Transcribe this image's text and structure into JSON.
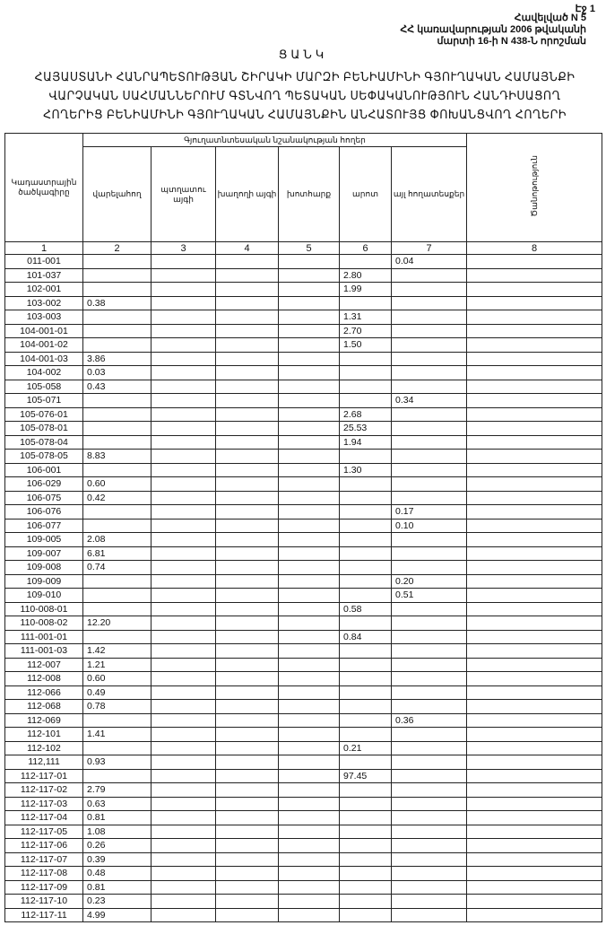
{
  "page_label": "Էջ 1",
  "annex": [
    "Հավելված N 5",
    "ՀՀ կառավարության 2006 թվականի",
    "մարտի 16-ի N 438-Ն որոշման"
  ],
  "list_title": "ՑԱՆԿ",
  "doc_title": "ՀԱՅԱՍՏԱՆԻ ՀԱՆՐԱՊԵՏՈՒԹՅԱՆ ՇԻՐԱԿԻ ՄԱՐԶԻ ԲԵՆԻԱՄԻՆԻ ԳՅՈՒՂԱԿԱՆ ՀԱՄԱՅՆՔԻ ՎԱՐՉԱԿԱՆ ՍԱՀՄԱՆՆԵՐՈՒՄ ԳՏՆՎՈՂ ՊԵՏԱԿԱՆ ՍԵՓԱԿԱՆՈՒԹՅՈՒՆ ՀԱՆԴԻՍԱՑՈՂ ՀՈՂԵՐԻՑ ԲԵՆԻԱՄԻՆԻ ԳՅՈՒՂԱԿԱՆ ՀԱՄԱՅՆՔԻՆ ԱՆՀԱՏՈՒՅՑ ՓՈԽԱՆՑՎՈՂ ՀՈՂԵՐԻ",
  "table": {
    "code_header": "Կադաստրային ծածկագիրը",
    "group_header": "Գյուղատնտեսական նշանակության հողեր",
    "columns": [
      "վարելահող",
      "պտղատու այգի",
      "խաղողի այգի",
      "խոտհարք",
      "արոտ",
      "այլ հողատեսքեր"
    ],
    "note_header": "Ծանոթություն",
    "column_numbers": [
      "1",
      "2",
      "3",
      "4",
      "5",
      "6",
      "7",
      "8"
    ],
    "rows": [
      [
        "011-001",
        "",
        "",
        "",
        "",
        "",
        "0.04"
      ],
      [
        "101-037",
        "",
        "",
        "",
        "",
        "2.80",
        ""
      ],
      [
        "102-001",
        "",
        "",
        "",
        "",
        "1.99",
        ""
      ],
      [
        "103-002",
        "0.38",
        "",
        "",
        "",
        "",
        ""
      ],
      [
        "103-003",
        "",
        "",
        "",
        "",
        "1.31",
        ""
      ],
      [
        "104-001-01",
        "",
        "",
        "",
        "",
        "2.70",
        ""
      ],
      [
        "104-001-02",
        "",
        "",
        "",
        "",
        "1.50",
        ""
      ],
      [
        "104-001-03",
        "3.86",
        "",
        "",
        "",
        "",
        ""
      ],
      [
        "104-002",
        "0.03",
        "",
        "",
        "",
        "",
        ""
      ],
      [
        "105-058",
        "0.43",
        "",
        "",
        "",
        "",
        ""
      ],
      [
        "105-071",
        "",
        "",
        "",
        "",
        "",
        "0.34"
      ],
      [
        "105-076-01",
        "",
        "",
        "",
        "",
        "2.68",
        ""
      ],
      [
        "105-078-01",
        "",
        "",
        "",
        "",
        "25.53",
        ""
      ],
      [
        "105-078-04",
        "",
        "",
        "",
        "",
        "1.94",
        ""
      ],
      [
        "105-078-05",
        "8.83",
        "",
        "",
        "",
        "",
        ""
      ],
      [
        "106-001",
        "",
        "",
        "",
        "",
        "1.30",
        ""
      ],
      [
        "106-029",
        "0.60",
        "",
        "",
        "",
        "",
        ""
      ],
      [
        "106-075",
        "0.42",
        "",
        "",
        "",
        "",
        ""
      ],
      [
        "106-076",
        "",
        "",
        "",
        "",
        "",
        "0.17"
      ],
      [
        "106-077",
        "",
        "",
        "",
        "",
        "",
        "0.10"
      ],
      [
        "109-005",
        "2.08",
        "",
        "",
        "",
        "",
        ""
      ],
      [
        "109-007",
        "6.81",
        "",
        "",
        "",
        "",
        ""
      ],
      [
        "109-008",
        "0.74",
        "",
        "",
        "",
        "",
        ""
      ],
      [
        "109-009",
        "",
        "",
        "",
        "",
        "",
        "0.20"
      ],
      [
        "109-010",
        "",
        "",
        "",
        "",
        "",
        "0.51"
      ],
      [
        "110-008-01",
        "",
        "",
        "",
        "",
        "0.58",
        ""
      ],
      [
        "110-008-02",
        "12.20",
        "",
        "",
        "",
        "",
        ""
      ],
      [
        "111-001-01",
        "",
        "",
        "",
        "",
        "0.84",
        ""
      ],
      [
        "111-001-03",
        "1.42",
        "",
        "",
        "",
        "",
        ""
      ],
      [
        "112-007",
        "1.21",
        "",
        "",
        "",
        "",
        ""
      ],
      [
        "112-008",
        "0.60",
        "",
        "",
        "",
        "",
        ""
      ],
      [
        "112-066",
        "0.49",
        "",
        "",
        "",
        "",
        ""
      ],
      [
        "112-068",
        "0.78",
        "",
        "",
        "",
        "",
        ""
      ],
      [
        "112-069",
        "",
        "",
        "",
        "",
        "",
        "0.36"
      ],
      [
        "112-101",
        "1.41",
        "",
        "",
        "",
        "",
        ""
      ],
      [
        "112-102",
        "",
        "",
        "",
        "",
        "0.21",
        ""
      ],
      [
        "112,111",
        "0.93",
        "",
        "",
        "",
        "",
        ""
      ],
      [
        "112-117-01",
        "",
        "",
        "",
        "",
        "97.45",
        ""
      ],
      [
        "112-117-02",
        "2.79",
        "",
        "",
        "",
        "",
        ""
      ],
      [
        "112-117-03",
        "0.63",
        "",
        "",
        "",
        "",
        ""
      ],
      [
        "112-117-04",
        "0.81",
        "",
        "",
        "",
        "",
        ""
      ],
      [
        "112-117-05",
        "1.08",
        "",
        "",
        "",
        "",
        ""
      ],
      [
        "112-117-06",
        "0.26",
        "",
        "",
        "",
        "",
        ""
      ],
      [
        "112-117-07",
        "0.39",
        "",
        "",
        "",
        "",
        ""
      ],
      [
        "112-117-08",
        "0.48",
        "",
        "",
        "",
        "",
        ""
      ],
      [
        "112-117-09",
        "0.81",
        "",
        "",
        "",
        "",
        ""
      ],
      [
        "112-117-10",
        "0.23",
        "",
        "",
        "",
        "",
        ""
      ],
      [
        "112-117-11",
        "4.99",
        "",
        "",
        "",
        "",
        ""
      ]
    ]
  }
}
